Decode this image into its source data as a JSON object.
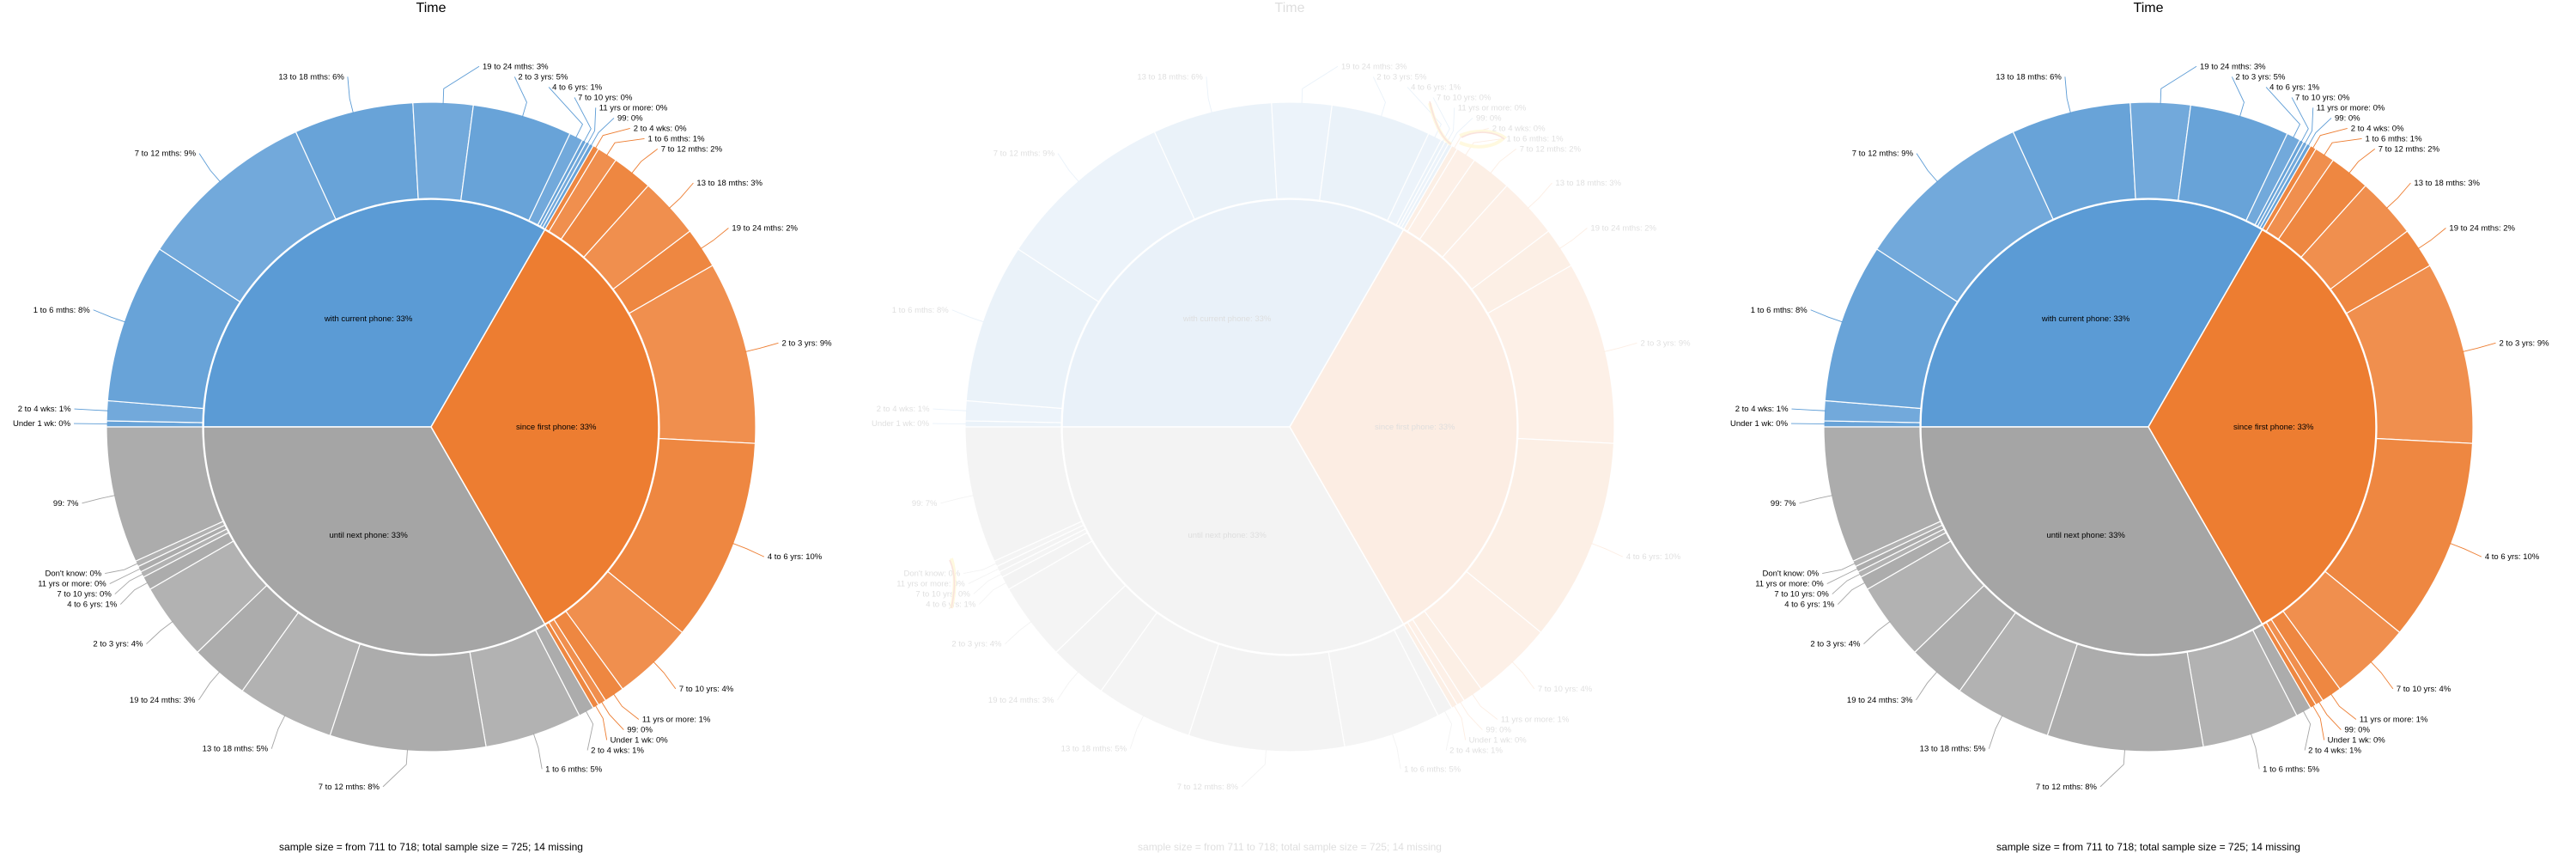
{
  "chart_data": {
    "type": "sunburst",
    "title": "Time",
    "footer": "sample size = from 711 to 718; total sample size = 725; 14 missing",
    "colors": {
      "with current phone": "#5b9bd5",
      "since first phone": "#ed7d31",
      "until next phone": "#a5a5a5"
    },
    "groups": [
      {
        "label": "with current phone: 33%",
        "name": "with current phone",
        "children": [
          {
            "label": "Under 1 wk: 0%",
            "value": 0.3
          },
          {
            "label": "2 to 4 wks: 1%",
            "value": 1
          },
          {
            "label": "1 to 6 mths: 8%",
            "value": 8
          },
          {
            "label": "7 to 12 mths: 9%",
            "value": 9
          },
          {
            "label": "13 to 18 mths: 6%",
            "value": 6
          },
          {
            "label": "19 to 24 mths: 3%",
            "value": 3
          },
          {
            "label": "2 to 3 yrs: 5%",
            "value": 5
          },
          {
            "label": "4 to 6 yrs: 1%",
            "value": 0.7
          },
          {
            "label": "7 to 10 yrs: 0%",
            "value": 0.2
          },
          {
            "label": "11 yrs or more: 0%",
            "value": 0.2
          },
          {
            "label": "99: 0%",
            "value": 0.2
          }
        ]
      },
      {
        "label": "since first phone: 33%",
        "name": "since first phone",
        "children": [
          {
            "label": "2 to 4 wks: 0%",
            "value": 0.3
          },
          {
            "label": "1 to 6 mths: 1%",
            "value": 1
          },
          {
            "label": "7 to 12 mths: 2%",
            "value": 2
          },
          {
            "label": "13 to 18 mths: 3%",
            "value": 3
          },
          {
            "label": "19 to 24 mths: 2%",
            "value": 2
          },
          {
            "label": "2 to 3 yrs: 9%",
            "value": 9
          },
          {
            "label": "4 to 6 yrs: 10%",
            "value": 10
          },
          {
            "label": "7 to 10 yrs: 4%",
            "value": 4
          },
          {
            "label": "11 yrs or more: 1%",
            "value": 1
          },
          {
            "label": "99: 0%",
            "value": 0.4
          },
          {
            "label": "Under 1 wk: 0%",
            "value": 0.3
          }
        ]
      },
      {
        "label": "until next phone: 33%",
        "name": "until next phone",
        "children": [
          {
            "label": "2 to 4 wks: 1%",
            "value": 0.8
          },
          {
            "label": "1 to 6 mths: 5%",
            "value": 5
          },
          {
            "label": "7 to 12 mths: 8%",
            "value": 8
          },
          {
            "label": "13 to 18 mths: 5%",
            "value": 5
          },
          {
            "label": "19 to 24 mths: 3%",
            "value": 3
          },
          {
            "label": "2 to 3 yrs: 4%",
            "value": 4
          },
          {
            "label": "4 to 6 yrs: 1%",
            "value": 0.7
          },
          {
            "label": "7 to 10 yrs: 0%",
            "value": 0.3
          },
          {
            "label": "11 yrs or more: 0%",
            "value": 0.3
          },
          {
            "label": "Don't know: 0%",
            "value": 0.3
          },
          {
            "label": "99: 7%",
            "value": 7
          }
        ]
      }
    ]
  },
  "panels": [
    {
      "title": "Time",
      "footer": "sample size = from 711 to 718; total sample size = 725; 14 missing"
    },
    {
      "title": "Time",
      "footer": "sample size = from 711 to 718; total sample size = 725; 14 missing"
    },
    {
      "title": "Time",
      "footer": "sample size = from 711 to 718; total sample size = 725; 14 missing"
    }
  ]
}
